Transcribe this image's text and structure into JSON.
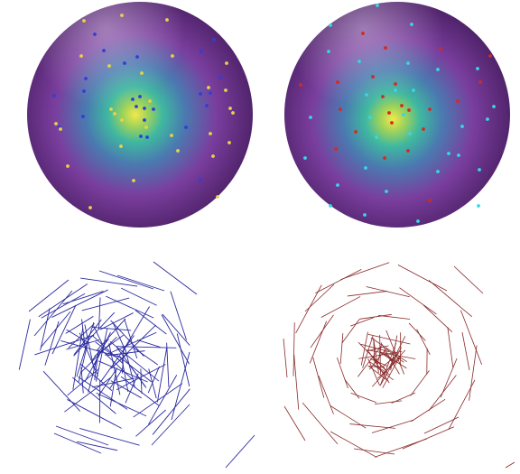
{
  "colors": {
    "background": "#ffffff",
    "sphere_center": "#f2e84a",
    "sphere_mid": "#3fb8a0",
    "sphere_outer": "#7a3e9e",
    "sphere_edge": "#4a1f63",
    "points_left_a": "#2f3fd6",
    "points_left_b": "#e8d24a",
    "points_right_a": "#d42a1e",
    "points_right_b": "#38d6e6",
    "lines_left": "#2a2aa0",
    "lines_right": "#8a2a2a"
  },
  "panels": [
    {
      "name": "sphere-left",
      "kind": "sphere-points",
      "palette": [
        "points_left_a",
        "points_left_b"
      ]
    },
    {
      "name": "sphere-right",
      "kind": "sphere-points",
      "palette": [
        "points_right_a",
        "points_right_b"
      ]
    },
    {
      "name": "lines-left",
      "kind": "line-segments",
      "palette": [
        "lines_left"
      ]
    },
    {
      "name": "lines-right",
      "kind": "line-segments",
      "palette": [
        "lines_right"
      ]
    }
  ]
}
